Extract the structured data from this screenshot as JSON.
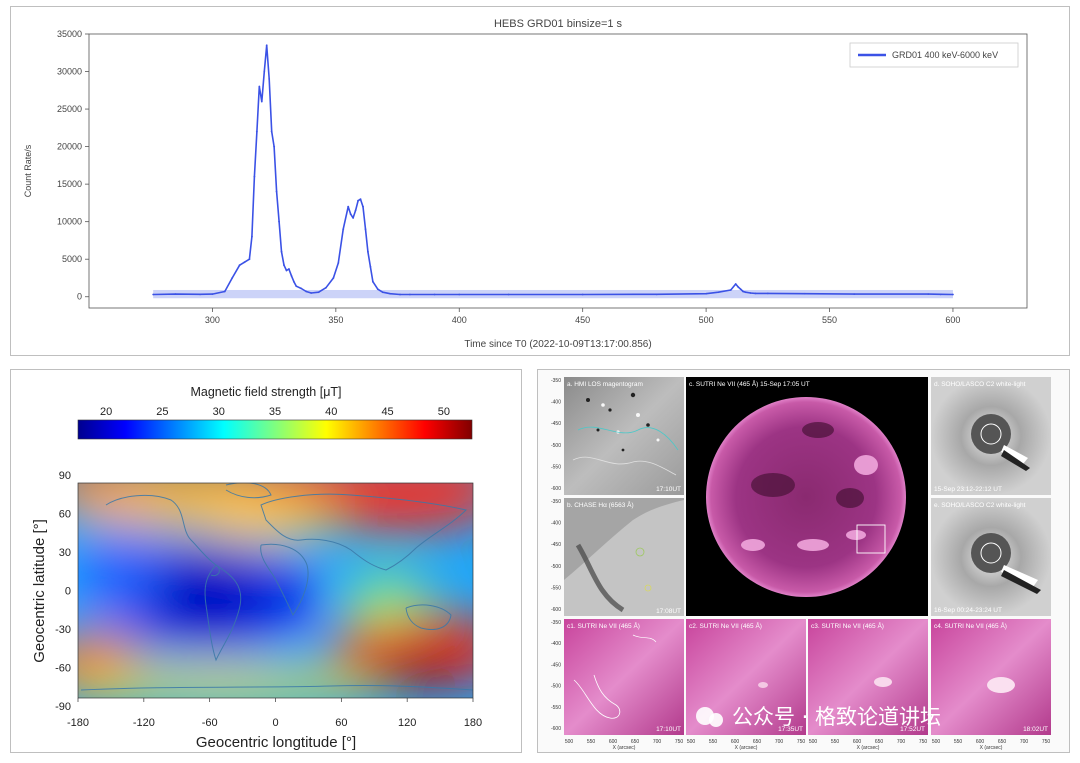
{
  "colors": {
    "series": "#3b52e6",
    "band": "#ccd3f8"
  },
  "chart_data": [
    {
      "type": "line",
      "title": "HEBS GRD01 binsize=1 s",
      "xlabel": "Time since T0 (2022-10-09T13:17:00.856)",
      "ylabel": "Count Rate/s",
      "legend_position": "top-right",
      "xlim": [
        250,
        630
      ],
      "ylim": [
        -1500,
        35000
      ],
      "xticks": [
        "300",
        "350",
        "400",
        "450",
        "500",
        "550",
        "600"
      ],
      "yticks": [
        "0",
        "5000",
        "10000",
        "15000",
        "20000",
        "25000",
        "30000",
        "35000"
      ],
      "series": [
        {
          "name": "GRD01 400 keV-6000 keV",
          "x": [
            276,
            285,
            295,
            300,
            305,
            308,
            311,
            313,
            315,
            316,
            317,
            318,
            319,
            320,
            321,
            322,
            323,
            324,
            325,
            326,
            327,
            328,
            329,
            330,
            331,
            332,
            333,
            334,
            336,
            338,
            340,
            343,
            346,
            349,
            351,
            353,
            355,
            356,
            357,
            358,
            359,
            360,
            361,
            362,
            363,
            364,
            365,
            367,
            369,
            372,
            376,
            380,
            390,
            400,
            420,
            450,
            480,
            500,
            505,
            510,
            512,
            513,
            514,
            515,
            516,
            518,
            520,
            525,
            540,
            560,
            590,
            595,
            600
          ],
          "y": [
            300,
            350,
            320,
            350,
            700,
            2500,
            4200,
            4600,
            5000,
            8000,
            16000,
            22000,
            28000,
            26000,
            30000,
            33500,
            29000,
            22000,
            20000,
            14000,
            10000,
            6000,
            4200,
            3500,
            3700,
            2800,
            2000,
            1400,
            1100,
            700,
            500,
            600,
            1200,
            2500,
            4500,
            9000,
            12000,
            11000,
            10500,
            11500,
            12800,
            13000,
            12000,
            9000,
            6000,
            4000,
            2000,
            1000,
            600,
            400,
            300,
            300,
            300,
            300,
            300,
            300,
            320,
            400,
            600,
            900,
            1700,
            1300,
            1000,
            700,
            600,
            500,
            450,
            450,
            400,
            350,
            350,
            320,
            300
          ]
        }
      ]
    },
    {
      "type": "heatmap",
      "title": "Magnetic field strength [μT]",
      "colorbar_ticks": [
        "20",
        "25",
        "30",
        "35",
        "40",
        "45",
        "50"
      ],
      "xlabel": "Geocentric longtitude [°]",
      "ylabel": "Geocentric latitude [°]",
      "xlim": [
        -180,
        180
      ],
      "ylim": [
        -90,
        90
      ],
      "xticks": [
        "-180",
        "-120",
        "-60",
        "0",
        "60",
        "120",
        "180"
      ],
      "yticks": [
        "90",
        "60",
        "30",
        "0",
        "-30",
        "-60",
        "-90"
      ]
    }
  ],
  "solar": {
    "panels": [
      {
        "label": "a. HMI LOS magentogram",
        "time": "17:10UT"
      },
      {
        "label": "b. CHASE Hα (6563 Å)",
        "time": "17:08UT"
      },
      {
        "label": "c. SUTRI Ne VII (465 Å) 15-Sep 17:05 UT"
      },
      {
        "label": "d. SOHO/LASCO C2 white-light",
        "time": "15-Sep 23:12-22:12 UT"
      },
      {
        "label": "e. SOHO/LASCO C2 white-light",
        "time": "16-Sep 00:24-23:24 UT"
      },
      {
        "label": "c1. SUTRI Ne VII (465 Å)",
        "time": "17:10UT"
      },
      {
        "label": "c2. SUTRI Ne VII (465 Å)",
        "time": "17:35UT"
      },
      {
        "label": "c3. SUTRI Ne VII (465 Å)",
        "time": "17:52UT"
      },
      {
        "label": "c4. SUTRI Ne VII (465 Å)",
        "time": "18:02UT"
      }
    ],
    "y_ticks": [
      "-350",
      "-400",
      "-450",
      "-500",
      "-550",
      "-600"
    ],
    "x_ticks": [
      "500",
      "550",
      "600",
      "650",
      "700",
      "750"
    ],
    "x_unit": "X (arcsec)",
    "y_unit": "Y (arcsec)",
    "watermark": "公众号 · 格致论道讲坛"
  }
}
